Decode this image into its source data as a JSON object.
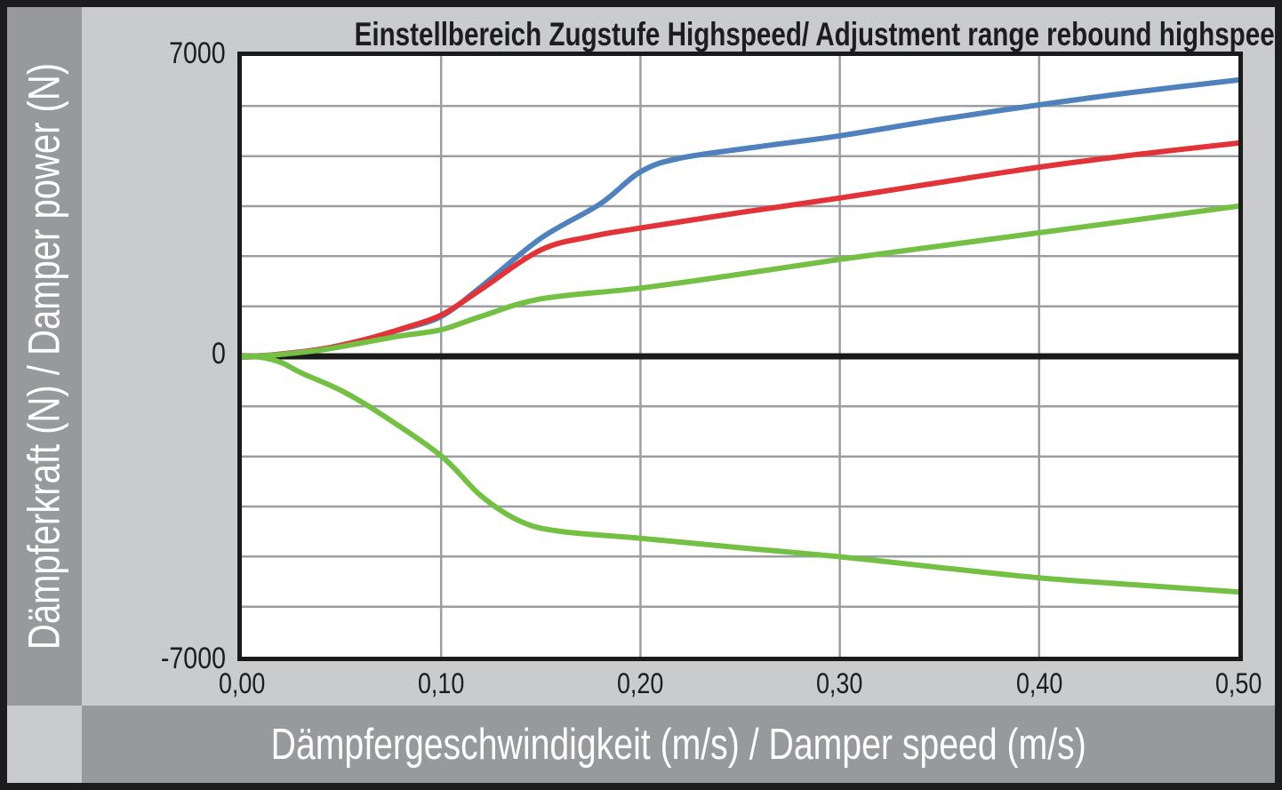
{
  "page": {
    "frame_color": "#1c1c1e",
    "panel_background": "#cacbcd",
    "bar_background": "#97999c",
    "plot_background": "#ffffff",
    "plot_border_color": "#1a1a1a",
    "text_color": "#1d1d1f",
    "bar_text_color": "#ffffff"
  },
  "y_axis": {
    "label": "Dämpferkraft (N) / Damper power (N)",
    "ticks": [
      "7000",
      "0",
      "-7000"
    ]
  },
  "x_axis": {
    "label": "Dämpfergeschwindigkeit (m/s) / Damper speed (m/s)",
    "ticks": [
      "0,00",
      "0,10",
      "0,20",
      "0,30",
      "0,40",
      "0,50"
    ]
  },
  "chart_data": {
    "type": "line",
    "title": "Einstellbereich Zugstufe Highspeed/ Adjustment range rebound highspeed",
    "xlabel": "Dämpfergeschwindigkeit (m/s) / Damper speed (m/s)",
    "ylabel": "Dämpferkraft (N) / Damper power (N)",
    "xlim": [
      0,
      0.5
    ],
    "ylim": [
      -7000,
      7000
    ],
    "x_tick_values": [
      0.0,
      0.1,
      0.2,
      0.3,
      0.4,
      0.5
    ],
    "y_tick_values": [
      7000,
      0,
      -7000
    ],
    "grid": {
      "show": true,
      "color": "#9b9da0",
      "width": 2.5,
      "x_values": [
        0.1,
        0.2,
        0.3,
        0.4
      ],
      "y_values": [
        5833,
        4667,
        3500,
        2333,
        1167,
        -1167,
        -2333,
        -3500,
        -4667,
        -5833
      ]
    },
    "zero_line": {
      "value": 0,
      "color": "#1a1a1a",
      "width": 7
    },
    "legend": "none",
    "series": [
      {
        "name": "blue-upper-limit-curve",
        "color": "#4f81bd",
        "width": 6,
        "points": [
          [
            0,
            0
          ],
          [
            0.01,
            15
          ],
          [
            0.02,
            55
          ],
          [
            0.04,
            170
          ],
          [
            0.06,
            370
          ],
          [
            0.08,
            630
          ],
          [
            0.1,
            930
          ],
          [
            0.12,
            1620
          ],
          [
            0.15,
            2750
          ],
          [
            0.18,
            3560
          ],
          [
            0.2,
            4300
          ],
          [
            0.22,
            4620
          ],
          [
            0.26,
            4890
          ],
          [
            0.3,
            5140
          ],
          [
            0.35,
            5520
          ],
          [
            0.4,
            5860
          ],
          [
            0.45,
            6170
          ],
          [
            0.5,
            6440
          ]
        ]
      },
      {
        "name": "red-middle-curve",
        "color": "#e23338",
        "width": 6,
        "points": [
          [
            0,
            0
          ],
          [
            0.01,
            15
          ],
          [
            0.02,
            55
          ],
          [
            0.04,
            170
          ],
          [
            0.06,
            370
          ],
          [
            0.08,
            640
          ],
          [
            0.1,
            960
          ],
          [
            0.12,
            1560
          ],
          [
            0.15,
            2480
          ],
          [
            0.175,
            2790
          ],
          [
            0.2,
            2990
          ],
          [
            0.25,
            3350
          ],
          [
            0.3,
            3690
          ],
          [
            0.35,
            4050
          ],
          [
            0.4,
            4410
          ],
          [
            0.45,
            4710
          ],
          [
            0.5,
            4970
          ]
        ]
      },
      {
        "name": "green-lower-limit-curve",
        "color": "#74c044",
        "width": 6,
        "points": [
          [
            0,
            0
          ],
          [
            0.01,
            10
          ],
          [
            0.02,
            45
          ],
          [
            0.04,
            150
          ],
          [
            0.06,
            310
          ],
          [
            0.08,
            480
          ],
          [
            0.1,
            620
          ],
          [
            0.12,
            930
          ],
          [
            0.15,
            1340
          ],
          [
            0.2,
            1590
          ],
          [
            0.25,
            1915
          ],
          [
            0.3,
            2260
          ],
          [
            0.35,
            2570
          ],
          [
            0.4,
            2880
          ],
          [
            0.45,
            3190
          ],
          [
            0.5,
            3500
          ]
        ]
      },
      {
        "name": "green-negative-rebound-curve",
        "color": "#74c044",
        "width": 6,
        "points": [
          [
            0,
            0
          ],
          [
            0.01,
            -25
          ],
          [
            0.02,
            -150
          ],
          [
            0.03,
            -390
          ],
          [
            0.05,
            -800
          ],
          [
            0.07,
            -1350
          ],
          [
            0.1,
            -2320
          ],
          [
            0.12,
            -3250
          ],
          [
            0.14,
            -3850
          ],
          [
            0.16,
            -4080
          ],
          [
            0.2,
            -4240
          ],
          [
            0.25,
            -4460
          ],
          [
            0.3,
            -4670
          ],
          [
            0.35,
            -4920
          ],
          [
            0.4,
            -5160
          ],
          [
            0.45,
            -5330
          ],
          [
            0.5,
            -5490
          ]
        ]
      }
    ]
  }
}
